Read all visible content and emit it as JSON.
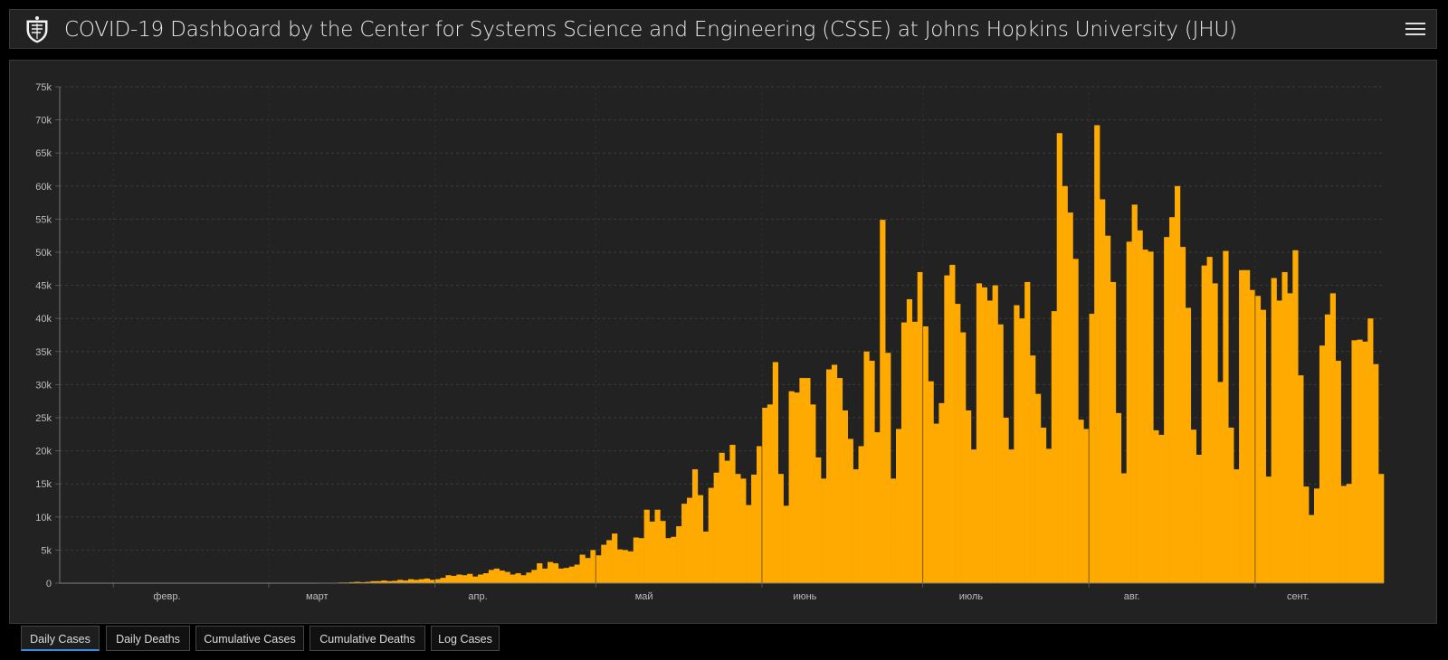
{
  "header": {
    "title": "COVID-19 Dashboard by the Center for Systems Science and Engineering (CSSE) at Johns Hopkins University (JHU)"
  },
  "icons": {
    "logo": "jhu-shield-icon",
    "menu": "hamburger-menu-icon"
  },
  "colors": {
    "bar": "#ffaa00",
    "background": "#222222",
    "grid": "#3a3a3a",
    "tab_active": "#2f8de4"
  },
  "tabs": [
    {
      "label": "Daily Cases",
      "active": true
    },
    {
      "label": "Daily Deaths",
      "active": false
    },
    {
      "label": "Cumulative Cases",
      "active": false
    },
    {
      "label": "Cumulative Deaths",
      "active": false
    },
    {
      "label": "Log Cases",
      "active": false
    }
  ],
  "chart_data": {
    "type": "bar",
    "ylim": [
      0,
      75000
    ],
    "yticks": [
      "0",
      "5k",
      "10k",
      "15k",
      "20k",
      "25k",
      "30k",
      "35k",
      "40k",
      "45k",
      "50k",
      "55k",
      "60k",
      "65k",
      "70k",
      "75k"
    ],
    "xticks": [
      "февр.",
      "март",
      "апр.",
      "май",
      "июнь",
      "июль",
      "авг.",
      "сент."
    ],
    "grid": true,
    "values": [
      5,
      5,
      5,
      5,
      5,
      5,
      5,
      5,
      5,
      5,
      5,
      5,
      5,
      5,
      5,
      5,
      5,
      5,
      5,
      5,
      5,
      5,
      5,
      5,
      5,
      5,
      5,
      5,
      5,
      5,
      5,
      5,
      5,
      5,
      5,
      5,
      5,
      5,
      5,
      5,
      5,
      5,
      5,
      5,
      5,
      5,
      5,
      5,
      20,
      30,
      30,
      60,
      100,
      100,
      150,
      200,
      150,
      200,
      300,
      300,
      400,
      300,
      350,
      500,
      400,
      600,
      500,
      600,
      700,
      500,
      600,
      800,
      1200,
      1100,
      1300,
      1200,
      1400,
      1000,
      1300,
      1500,
      2000,
      2200,
      1900,
      1700,
      1300,
      1500,
      1200,
      1600,
      2000,
      3000,
      2200,
      3200,
      3000,
      2200,
      2300,
      2500,
      2800,
      4300,
      3800,
      5000,
      4200,
      5800,
      6500,
      7500,
      5100,
      5000,
      4800,
      6900,
      6800,
      11100,
      9300,
      11100,
      9400,
      6800,
      7000,
      8600,
      12000,
      12900,
      17200,
      13300,
      7800,
      14400,
      16700,
      19700,
      18500,
      20900,
      16500,
      15800,
      11800,
      16400,
      20700,
      26500,
      27000,
      33400,
      16500,
      11700,
      29000,
      28800,
      31000,
      31000,
      27000,
      19000,
      15800,
      32300,
      33000,
      31000,
      26100,
      21800,
      17200,
      20700,
      35000,
      33600,
      22800,
      54900,
      34800,
      15800,
      23300,
      39400,
      42900,
      39500,
      47000,
      38800,
      30500,
      24100,
      27200,
      46500,
      48100,
      42200,
      37900,
      26100,
      20200,
      45300,
      44700,
      42700,
      45000,
      39100,
      25000,
      20200,
      42000,
      40000,
      45500,
      34400,
      28600,
      23500,
      20300,
      41100,
      68000,
      60000,
      56000,
      49000,
      24700,
      23300,
      40700,
      69200,
      58000,
      52500,
      45500,
      25700,
      16600,
      51600,
      57200,
      53300,
      50400,
      50100,
      23100,
      22400,
      52300,
      55300,
      60000,
      50800,
      41600,
      23200,
      19400,
      48000,
      49300,
      45300,
      30400,
      50200,
      23500,
      17200,
      47300,
      47300,
      44300,
      43400,
      41300,
      16100,
      46100,
      42700,
      47000,
      43800,
      50300,
      31400,
      14600,
      10300,
      14300,
      35900,
      40600,
      43800,
      33600,
      14700,
      15000,
      36700,
      36800,
      36500,
      40000,
      33100,
      16500
    ]
  }
}
